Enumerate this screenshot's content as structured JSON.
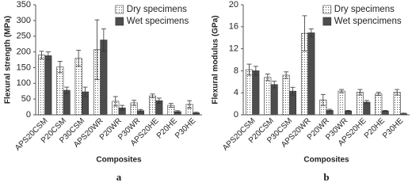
{
  "chart_data": [
    {
      "type": "bar",
      "y_label": "Flexural strength (MPa)",
      "x_label": "Composites",
      "panel_label": "a",
      "categories": [
        "APS20CSM",
        "P20CSM",
        "P30CSM",
        "APS20WR",
        "P20WR",
        "P30WR",
        "APS20HE",
        "P20HE",
        "P30HE"
      ],
      "series": [
        {
          "name": "Dry specimens",
          "color": "#ffffff",
          "pattern": "dots",
          "values": [
            190,
            152,
            180,
            207,
            43,
            38,
            60,
            30,
            33
          ],
          "errors": [
            12,
            18,
            25,
            95,
            15,
            8,
            6,
            6,
            12
          ]
        },
        {
          "name": "Wet specimens",
          "color": "#4d4d4d",
          "values": [
            188,
            78,
            73,
            238,
            22,
            13,
            45,
            10,
            6
          ],
          "errors": [
            12,
            10,
            15,
            35,
            8,
            4,
            8,
            3,
            2
          ]
        }
      ],
      "ylim": [
        0,
        350
      ],
      "yticks": [
        0,
        50,
        100,
        150,
        200,
        250,
        300,
        350
      ],
      "grid": false,
      "legend": "top-right"
    },
    {
      "type": "bar",
      "y_label": "Flexural modulus (GPa)",
      "x_label": "Composites",
      "panel_label": "b",
      "categories": [
        "APS20CSM",
        "P20CSM",
        "P30CSM",
        "APS20WR",
        "P20WR",
        "P30WR",
        "APS20HE",
        "P20HE",
        "P30HE"
      ],
      "series": [
        {
          "name": "Dry specimens",
          "color": "#ffffff",
          "pattern": "dots",
          "values": [
            8.2,
            6.8,
            7.2,
            14.8,
            2.7,
            4.3,
            4.1,
            3.8,
            4.1
          ],
          "errors": [
            1.0,
            0.6,
            0.6,
            3.2,
            1.0,
            0.3,
            0.5,
            0.3,
            0.5
          ]
        },
        {
          "name": "Wet spencimens",
          "color": "#4d4d4d",
          "values": [
            8.0,
            5.5,
            4.3,
            14.9,
            0.8,
            0.7,
            2.3,
            0.7,
            0.2
          ],
          "errors": [
            0.8,
            0.6,
            0.7,
            0.7,
            0.2,
            0.1,
            0.3,
            0.1,
            0.1
          ]
        }
      ],
      "ylim": [
        0,
        20
      ],
      "yticks": [
        0,
        4,
        8,
        12,
        16,
        20
      ],
      "grid": false,
      "legend": "top-right"
    }
  ]
}
